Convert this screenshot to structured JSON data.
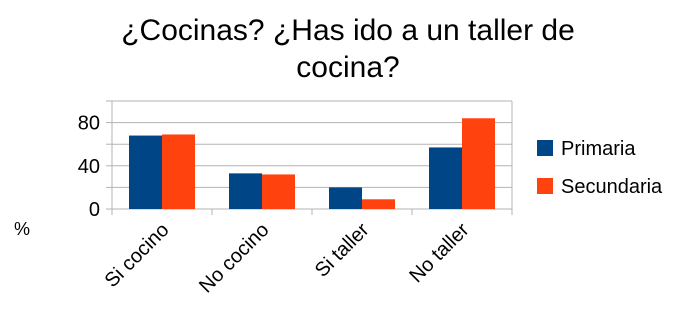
{
  "chart_data": {
    "type": "bar",
    "title_lines": [
      "¿Cocinas? ¿Has ido a un taller de",
      "cocina?"
    ],
    "ylabel": "%",
    "categories": [
      "Si cocino",
      "No cocino",
      "Si taller",
      "No taller"
    ],
    "series": [
      {
        "name": "Primaria",
        "color": "#004586",
        "values": [
          68,
          33,
          20,
          57
        ]
      },
      {
        "name": "Secundaria",
        "color": "#ff420e",
        "values": [
          69,
          32,
          9,
          84
        ]
      }
    ],
    "ylim": [
      0,
      100
    ],
    "yticks": [
      0,
      40,
      80
    ],
    "grid": true,
    "legend_position": "right"
  }
}
